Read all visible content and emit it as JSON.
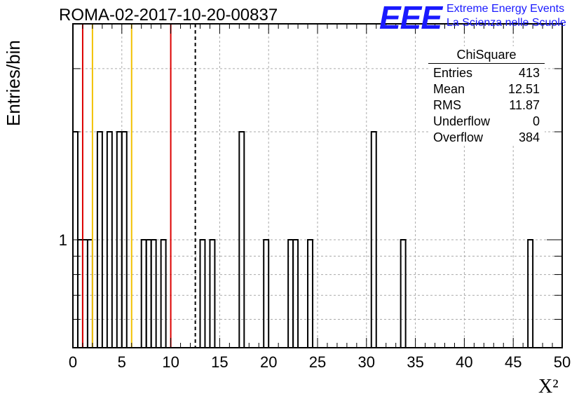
{
  "header": {
    "run_title": "ROMA-02-2017-10-20-00837",
    "logo_text": "EEE",
    "logo_line1": "Extreme Energy Events",
    "logo_line2": "La Scienza nelle Scuole"
  },
  "stats_box": {
    "title": "ChiSquare",
    "rows": [
      {
        "label": "Entries",
        "value": "413"
      },
      {
        "label": "Mean",
        "value": "12.51"
      },
      {
        "label": "RMS",
        "value": "11.87"
      },
      {
        "label": "Underflow",
        "value": "0"
      },
      {
        "label": "Overflow",
        "value": "384"
      }
    ]
  },
  "chart_data": {
    "type": "bar",
    "title": "ROMA-02-2017-10-20-00837",
    "xlabel": "X²",
    "ylabel": "Entries/bin",
    "xlim": [
      0,
      50
    ],
    "x_ticks": [
      "0",
      "5",
      "10",
      "15",
      "20",
      "25",
      "30",
      "35",
      "40",
      "45",
      "50"
    ],
    "y_scale": "log",
    "y_tick_label": "1",
    "grid": true,
    "bin_width": 0.5,
    "bins": [
      {
        "x": 0.0,
        "count": 2
      },
      {
        "x": 0.5,
        "count": 1
      },
      {
        "x": 1.0,
        "count": 1
      },
      {
        "x": 1.5,
        "count": 1
      },
      {
        "x": 2.5,
        "count": 2
      },
      {
        "x": 3.5,
        "count": 2
      },
      {
        "x": 4.5,
        "count": 2
      },
      {
        "x": 5.0,
        "count": 2
      },
      {
        "x": 7.0,
        "count": 1
      },
      {
        "x": 7.5,
        "count": 1
      },
      {
        "x": 8.0,
        "count": 1
      },
      {
        "x": 9.0,
        "count": 1
      },
      {
        "x": 13.0,
        "count": 1
      },
      {
        "x": 14.0,
        "count": 1
      },
      {
        "x": 17.0,
        "count": 2
      },
      {
        "x": 19.5,
        "count": 1
      },
      {
        "x": 22.0,
        "count": 1
      },
      {
        "x": 22.5,
        "count": 1
      },
      {
        "x": 24.0,
        "count": 1
      },
      {
        "x": 30.5,
        "count": 2
      },
      {
        "x": 33.5,
        "count": 1
      },
      {
        "x": 46.5,
        "count": 1
      }
    ],
    "markers": [
      {
        "x": 1,
        "color": "#dd0000",
        "style": "solid"
      },
      {
        "x": 2,
        "color": "#f2c200",
        "style": "solid"
      },
      {
        "x": 6,
        "color": "#f2c200",
        "style": "solid"
      },
      {
        "x": 10,
        "color": "#dd0000",
        "style": "solid"
      },
      {
        "x": 12.51,
        "color": "#000000",
        "style": "dashed"
      }
    ]
  }
}
